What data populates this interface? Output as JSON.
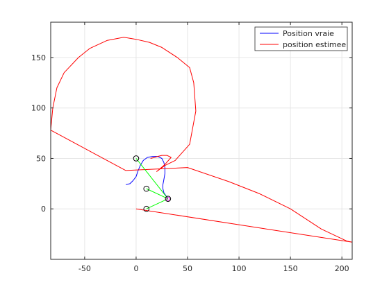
{
  "chart_data": {
    "type": "line",
    "title": "",
    "xlabel": "",
    "ylabel": "",
    "xlim": [
      -83,
      210
    ],
    "ylim": [
      -50,
      185
    ],
    "xticks": [
      -50,
      0,
      50,
      100,
      150,
      200
    ],
    "yticks": [
      0,
      50,
      100,
      150
    ],
    "xtick_labels": [
      "-50",
      "0",
      "50",
      "100",
      "150",
      "200"
    ],
    "ytick_labels": [
      "0",
      "50",
      "100",
      "150"
    ],
    "grid": true,
    "legend_location": "top-right",
    "series": [
      {
        "name": "Position vraie",
        "color": "#0000ff",
        "points": [
          [
            -10,
            24
          ],
          [
            -6,
            25
          ],
          [
            -3,
            28
          ],
          [
            0,
            32
          ],
          [
            2,
            38
          ],
          [
            4,
            43
          ],
          [
            7,
            48
          ],
          [
            11,
            51
          ],
          [
            16,
            52
          ],
          [
            21,
            52
          ],
          [
            25,
            50
          ],
          [
            27,
            46
          ],
          [
            28,
            41
          ],
          [
            28,
            35
          ],
          [
            27,
            29
          ],
          [
            26,
            24
          ],
          [
            26,
            20
          ],
          [
            27,
            16
          ],
          [
            29,
            13
          ],
          [
            31,
            11
          ]
        ]
      },
      {
        "name": "position estimee",
        "color": "#ff0000",
        "points": [
          [
            0,
            0
          ],
          [
            210,
            -33
          ],
          [
            205,
            -32
          ],
          [
            180,
            -20
          ],
          [
            150,
            0
          ],
          [
            120,
            15
          ],
          [
            90,
            27
          ],
          [
            50,
            41
          ],
          [
            -10,
            38
          ],
          [
            -83,
            78
          ],
          [
            -81,
            100
          ],
          [
            -77,
            120
          ],
          [
            -70,
            135
          ],
          [
            -56,
            150
          ],
          [
            -45,
            159
          ],
          [
            -28,
            167
          ],
          [
            -12,
            170
          ],
          [
            0,
            168
          ],
          [
            13,
            165
          ],
          [
            25,
            160
          ],
          [
            40,
            150
          ],
          [
            52,
            140
          ],
          [
            56,
            125
          ],
          [
            58,
            97
          ],
          [
            52,
            64
          ],
          [
            38,
            48
          ],
          [
            28,
            43
          ],
          [
            20,
            37
          ],
          [
            28,
            44
          ],
          [
            34,
            51
          ],
          [
            30,
            53
          ],
          [
            25,
            53
          ],
          [
            21,
            52
          ],
          [
            18,
            51
          ],
          [
            14,
            50
          ]
        ]
      }
    ],
    "landmarks": [
      [
        0,
        50
      ],
      [
        10,
        20
      ],
      [
        10,
        0
      ],
      [
        31,
        10
      ]
    ],
    "robot_position": [
      31,
      10
    ],
    "measurement_links": [
      [
        [
          31,
          10
        ],
        [
          0,
          50
        ]
      ],
      [
        [
          31,
          10
        ],
        [
          10,
          20
        ]
      ],
      [
        [
          31,
          10
        ],
        [
          10,
          0
        ]
      ]
    ]
  },
  "legend": {
    "entries": [
      {
        "label": "Position vraie",
        "color": "#0000ff"
      },
      {
        "label": "position estimee",
        "color": "#ff0000"
      }
    ]
  },
  "colors": {
    "links": "#00ff00",
    "landmark": "#000000",
    "robot_marker": "#ff00ff"
  }
}
